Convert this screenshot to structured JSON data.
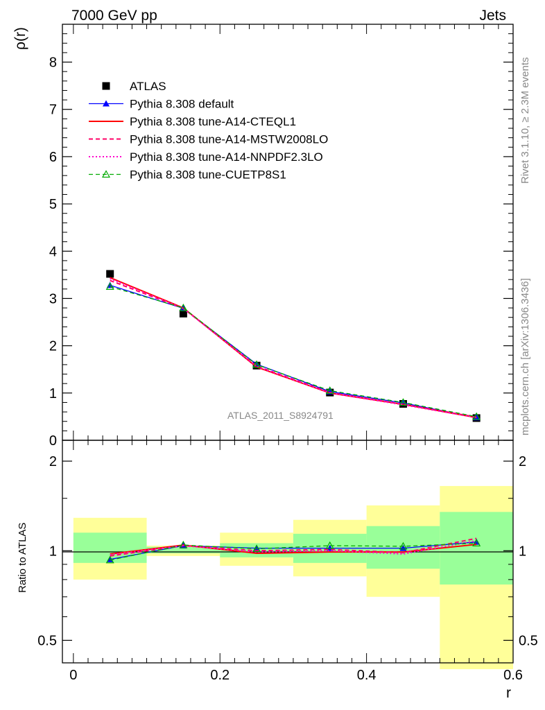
{
  "header": {
    "energy_label": "7000 GeV pp",
    "process_label": "Jets",
    "rivet_label": "Rivet 3.1.10, ≥ 2.3M events",
    "mcplots_label": "mcplots.cern.ch [arXiv:1306.3436]",
    "analysis_label": "ATLAS_2011_S8924791"
  },
  "chart_data": [
    {
      "type": "line",
      "panel": "main",
      "ylabel": "ρ(r)",
      "xlim": [
        -0.015,
        0.6
      ],
      "ylim": [
        0,
        8.8
      ],
      "yticks": [
        0,
        1,
        2,
        3,
        4,
        5,
        6,
        7,
        8
      ],
      "x": [
        0.05,
        0.15,
        0.25,
        0.35,
        0.45,
        0.55
      ],
      "series": [
        {
          "name": "ATLAS",
          "color": "#000000",
          "style": "marker-square",
          "values": [
            3.52,
            2.68,
            1.58,
            1.01,
            0.77,
            0.47
          ]
        },
        {
          "name": "Pythia 8.308 default",
          "color": "#0000ff",
          "style": "solid-triangle",
          "values": [
            3.28,
            2.79,
            1.61,
            1.03,
            0.79,
            0.48
          ]
        },
        {
          "name": "Pythia 8.308 tune-A14-CTEQL1",
          "color": "#ff0000",
          "style": "solid",
          "values": [
            3.44,
            2.8,
            1.55,
            1.0,
            0.76,
            0.48
          ]
        },
        {
          "name": "Pythia 8.308 tune-A14-MSTW2008LO",
          "color": "#ff0066",
          "style": "dashed",
          "values": [
            3.38,
            2.79,
            1.57,
            1.01,
            0.76,
            0.49
          ]
        },
        {
          "name": "Pythia 8.308 tune-A14-NNPDF2.3LO",
          "color": "#ff00cc",
          "style": "dotted",
          "values": [
            3.42,
            2.79,
            1.56,
            1.0,
            0.75,
            0.48
          ]
        },
        {
          "name": "Pythia 8.308 tune-CUETP8S1",
          "color": "#00aa00",
          "style": "dashed-open-triangle",
          "values": [
            3.25,
            2.8,
            1.6,
            1.05,
            0.8,
            0.5
          ]
        }
      ]
    },
    {
      "type": "line",
      "panel": "ratio",
      "xlabel": "r",
      "ylabel": "Ratio to ATLAS",
      "yscale": "log",
      "xlim": [
        -0.015,
        0.6
      ],
      "ylim": [
        0.42,
        2.35
      ],
      "xticks": [
        0,
        0.2,
        0.4,
        0.6
      ],
      "yticks": [
        0.5,
        1,
        2
      ],
      "x": [
        0.05,
        0.15,
        0.25,
        0.35,
        0.45,
        0.55
      ],
      "bands": [
        {
          "x0": 0.0,
          "x1": 0.1,
          "stat": [
            0.91,
            1.15
          ],
          "total": [
            0.8,
            1.29
          ]
        },
        {
          "x0": 0.1,
          "x1": 0.2,
          "stat": [
            0.98,
            1.03
          ],
          "total": [
            0.96,
            1.04
          ]
        },
        {
          "x0": 0.2,
          "x1": 0.3,
          "stat": [
            0.95,
            1.06
          ],
          "total": [
            0.89,
            1.15
          ]
        },
        {
          "x0": 0.3,
          "x1": 0.4,
          "stat": [
            0.91,
            1.14
          ],
          "total": [
            0.82,
            1.27
          ]
        },
        {
          "x0": 0.4,
          "x1": 0.5,
          "stat": [
            0.87,
            1.21
          ],
          "total": [
            0.7,
            1.42
          ]
        },
        {
          "x0": 0.5,
          "x1": 0.6,
          "stat": [
            0.77,
            1.35
          ],
          "total": [
            0.4,
            1.65
          ]
        }
      ],
      "series": [
        {
          "name": "Pythia 8.308 default",
          "color": "#0000ff",
          "style": "solid-triangle",
          "values": [
            0.935,
            1.04,
            1.02,
            1.02,
            1.02,
            1.07
          ]
        },
        {
          "name": "Pythia 8.308 tune-A14-CTEQL1",
          "color": "#ff0000",
          "style": "solid",
          "values": [
            0.975,
            1.045,
            0.98,
            0.99,
            0.99,
            1.05
          ]
        },
        {
          "name": "Pythia 8.308 tune-A14-MSTW2008LO",
          "color": "#ff0066",
          "style": "dashed",
          "values": [
            0.96,
            1.04,
            1.0,
            1.01,
            0.985,
            1.1
          ]
        },
        {
          "name": "Pythia 8.308 tune-A14-NNPDF2.3LO",
          "color": "#ff00cc",
          "style": "dotted",
          "values": [
            0.97,
            1.04,
            0.99,
            1.0,
            0.975,
            1.08
          ]
        },
        {
          "name": "Pythia 8.308 tune-CUETP8S1",
          "color": "#00aa00",
          "style": "dashed-open-triangle",
          "values": [
            0.93,
            1.045,
            1.015,
            1.04,
            1.035,
            1.06
          ]
        }
      ]
    }
  ]
}
